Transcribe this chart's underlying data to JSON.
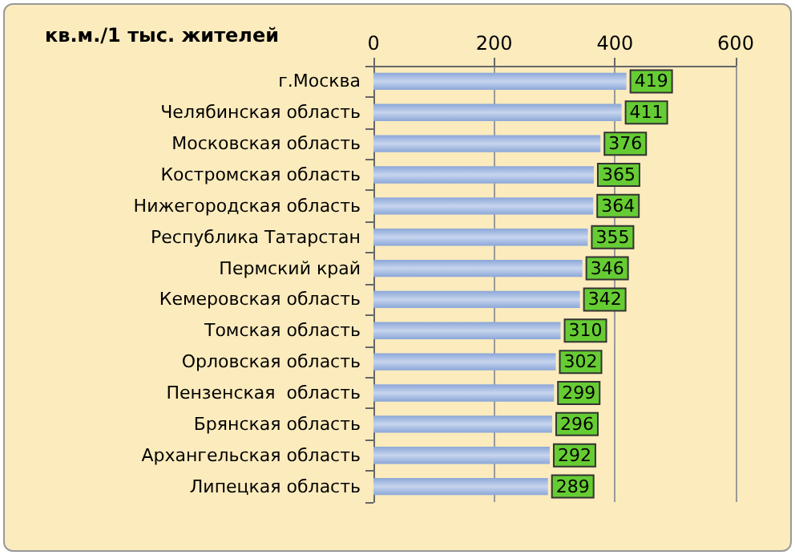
{
  "chart_data": {
    "type": "bar",
    "orientation": "horizontal",
    "title": "кв.м./1 тыс. жителей",
    "categories": [
      "г.Москва",
      "Челябинская область",
      "Московская область",
      "Костромская область",
      "Нижегородская область",
      "Республика Татарстан",
      "Пермский край",
      "Кемеровская область",
      "Томская область",
      "Орловская область",
      "Пензенская  область",
      "Брянская область",
      "Архангельская область",
      "Липецкая область"
    ],
    "values": [
      419,
      411,
      376,
      365,
      364,
      355,
      346,
      342,
      310,
      302,
      299,
      296,
      292,
      289
    ],
    "color": "#8ba7d8",
    "xlim": [
      0,
      600
    ],
    "xticks": [
      0,
      200,
      400,
      600
    ],
    "grid": "x",
    "data_labels": true
  }
}
